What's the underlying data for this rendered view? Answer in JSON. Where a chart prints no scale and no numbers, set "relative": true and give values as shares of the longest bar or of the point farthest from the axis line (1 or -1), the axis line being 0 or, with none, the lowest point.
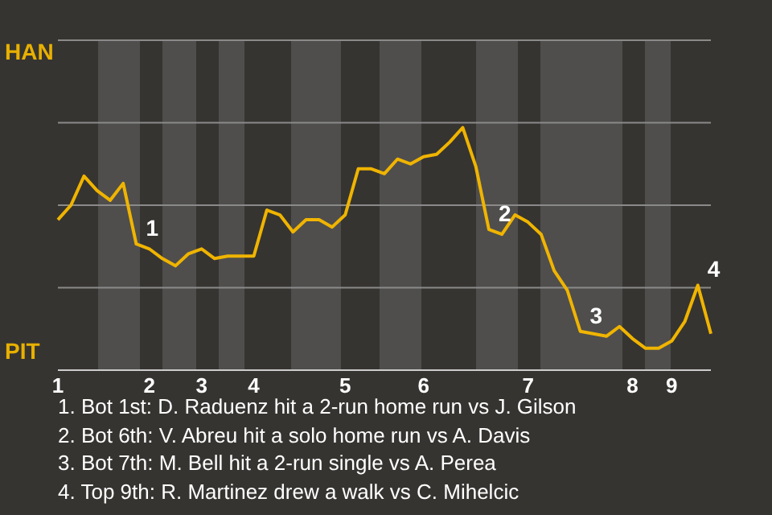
{
  "chart_data": {
    "type": "line",
    "relative": true,
    "categories": [
      "1",
      null,
      null,
      null,
      null,
      null,
      null,
      "2",
      null,
      null,
      null,
      "3",
      null,
      null,
      null,
      "4",
      null,
      null,
      null,
      null,
      null,
      null,
      "5",
      null,
      null,
      null,
      null,
      null,
      "6",
      null,
      null,
      null,
      null,
      null,
      null,
      null,
      "7",
      null,
      null,
      null,
      null,
      null,
      null,
      null,
      "8",
      null,
      null,
      "9",
      null,
      null,
      null
    ],
    "series": [
      {
        "color": "#f0b400",
        "values": [
          0.62,
          0.68,
          0.8,
          0.74,
          0.7,
          0.77,
          0.52,
          0.5,
          0.46,
          0.43,
          0.48,
          0.5,
          0.46,
          0.47,
          0.47,
          0.47,
          0.66,
          0.64,
          0.57,
          0.62,
          0.62,
          0.59,
          0.64,
          0.83,
          0.83,
          0.81,
          0.87,
          0.85,
          0.88,
          0.89,
          0.94,
          1,
          0.84,
          0.58,
          0.56,
          0.64,
          0.61,
          0.56,
          0.41,
          0.33,
          0.16,
          0.15,
          0.14,
          0.18,
          0.13,
          0.09,
          0.09,
          0.12,
          0.2,
          0.35,
          0.15
        ]
      }
    ],
    "ref_lines": [
      {
        "axis": "y",
        "value": 0.34,
        "color": "#8a8a8a"
      },
      {
        "axis": "y",
        "value": 0.68,
        "color": "#8a8a8a"
      },
      {
        "axis": "y",
        "value": 1.02,
        "color": "#8a8a8a"
      },
      {
        "axis": "y",
        "value": 1.36,
        "color": "#8a8a8a"
      }
    ],
    "marker": "none",
    "annotations": [
      "HAN",
      "PIT",
      {
        "text": "1",
        "y": 0.52
      },
      {
        "text": "2",
        "y": 0.58
      },
      {
        "text": "3",
        "y": 0.16
      },
      {
        "text": "4",
        "y": 0.35
      },
      "1. Bot 1st: D. Raduenz hit a 2-run home run vs J. Gilson",
      "2. Bot 6th: V. Abreu hit a solo home run vs A. Davis",
      "3. Bot 7th: M. Bell hit a 2-run single vs A. Perea",
      "4. Top 9th: R. Martinez drew a walk vs C. Mihelcic"
    ]
  }
}
